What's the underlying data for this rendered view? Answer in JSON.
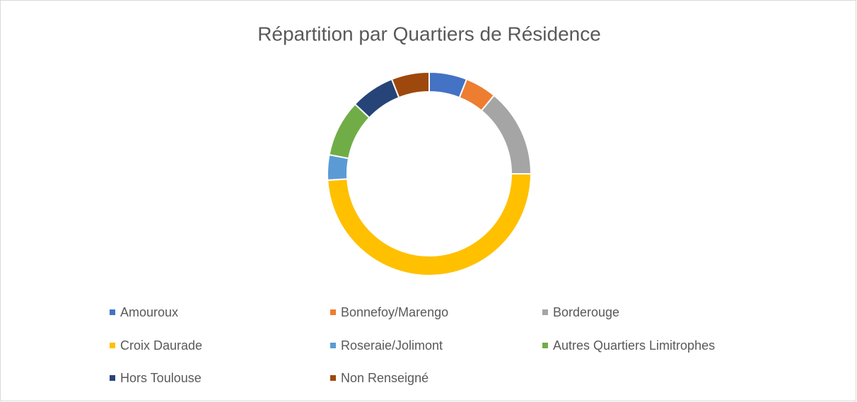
{
  "chart_data": {
    "type": "donut",
    "title": "Répartition par Quartiers de Résidence",
    "categories": [
      "Amouroux",
      "Bonnefoy/Marengo",
      "Borderouge",
      "Croix Daurade",
      "Roseraie/Jolimont",
      "Autres Quartiers Limitrophes",
      "Hors Toulouse",
      "Non Renseigné"
    ],
    "values": [
      6,
      5,
      14,
      49,
      4,
      9,
      7,
      6
    ],
    "colors": [
      "#4472c4",
      "#ed7d31",
      "#a5a5a5",
      "#ffc000",
      "#5b9bd5",
      "#70ad47",
      "#264478",
      "#9e480e"
    ],
    "legend": "bottom"
  }
}
